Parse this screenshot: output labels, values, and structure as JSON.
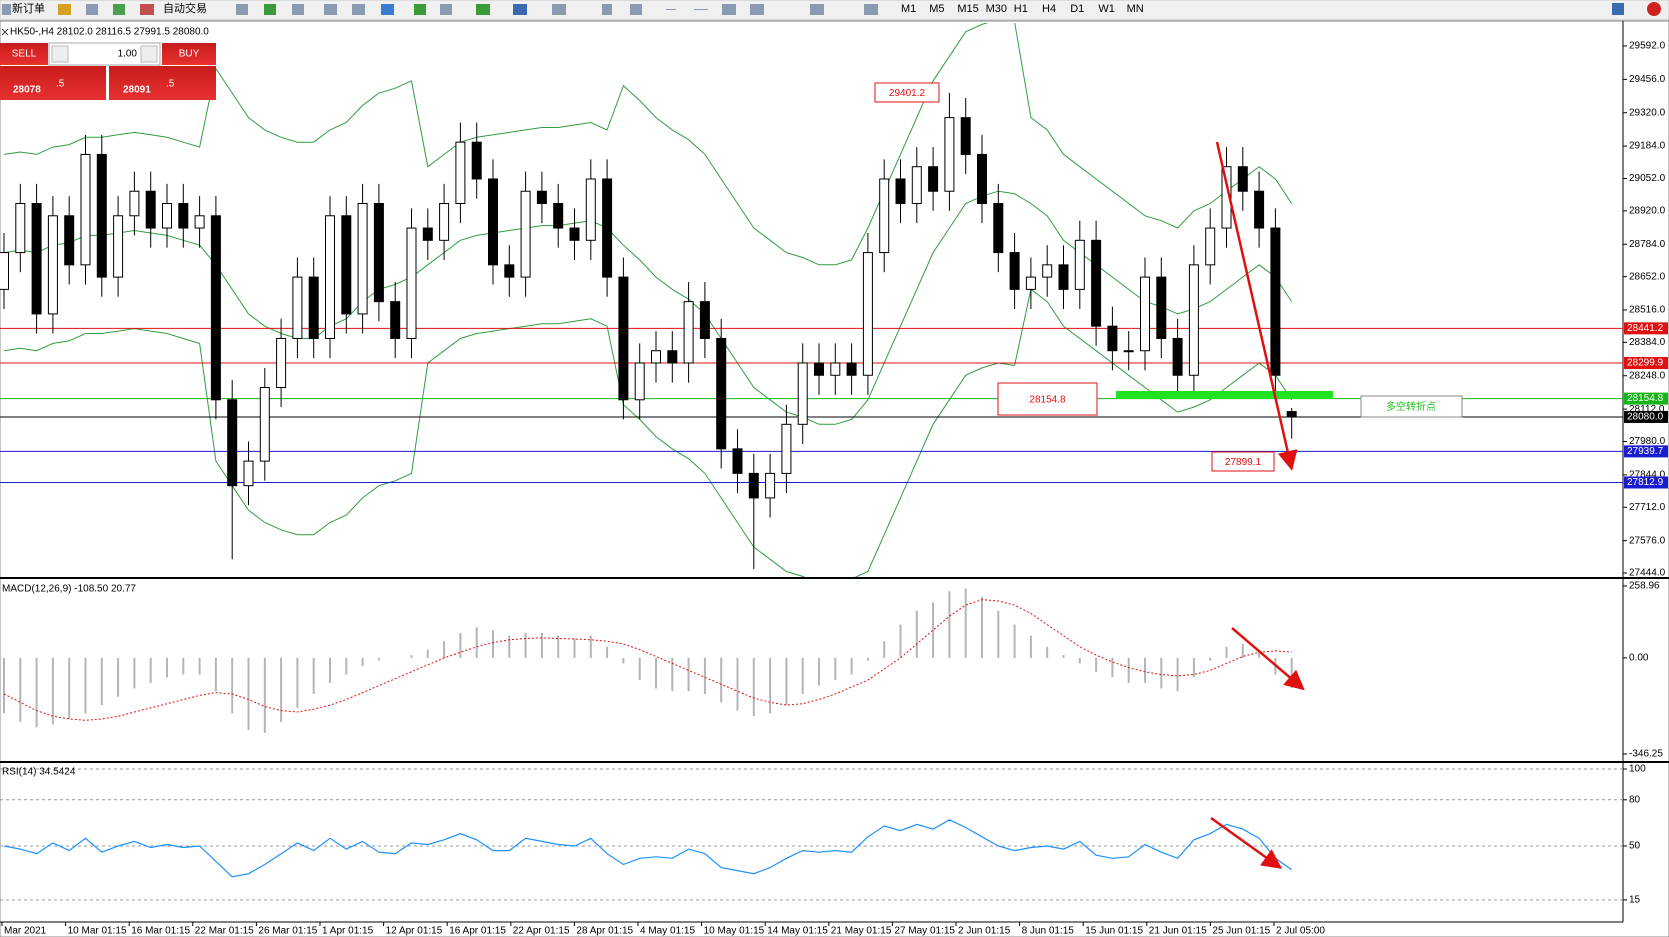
{
  "toolbar": {
    "new_order": "新订单",
    "auto_trading": "自动交易",
    "timeframes": [
      "M1",
      "M5",
      "M15",
      "M30",
      "H1",
      "H4",
      "D1",
      "W1",
      "MN"
    ]
  },
  "order_panel": {
    "sell": "SELL",
    "lots": "1.00",
    "buy": "BUY",
    "bid_main": "28078",
    "bid_frac": ".5",
    "ask_main": "28091",
    "ask_frac": ".5"
  },
  "chart_data": [
    {
      "type": "candlestick",
      "title": "HK50-,H4 28102.0 28116.5 27991.5 28080.0",
      "open": [
        28600,
        28750,
        28950,
        28500,
        28900,
        28700,
        29150,
        28650,
        28900,
        29000,
        28850,
        28950,
        28850,
        28900,
        28150,
        27800,
        27900,
        28200,
        28400,
        28650,
        28400,
        28900,
        28500,
        28950,
        28550,
        28400,
        28850,
        28800,
        28950,
        29200,
        29050,
        28700,
        28650,
        29000,
        28950,
        28850,
        28800,
        29050,
        28650,
        28150,
        28300,
        28350,
        28300,
        28550,
        28400,
        27950,
        27850,
        27750,
        27850,
        28050,
        28300,
        28250,
        28300,
        28250,
        28750,
        29050,
        28950,
        29100,
        29000,
        29300,
        29150,
        28950,
        28750,
        28600,
        28650,
        28700,
        28600,
        28800,
        28450,
        28350,
        28350,
        28650,
        28400,
        28250,
        28700,
        28850,
        29100,
        29000,
        28850,
        28102
      ],
      "high": [
        28830,
        29030,
        29030,
        28980,
        28980,
        29230,
        29230,
        28980,
        29080,
        29080,
        29030,
        29030,
        28980,
        28980,
        28230,
        27980,
        28280,
        28480,
        28730,
        28730,
        28980,
        28980,
        29030,
        29030,
        28630,
        28930,
        28930,
        29030,
        29280,
        29280,
        29130,
        28780,
        29080,
        29080,
        29030,
        28930,
        29130,
        29130,
        28730,
        28380,
        28430,
        28430,
        28630,
        28630,
        28480,
        28030,
        27930,
        27930,
        28130,
        28380,
        28380,
        28380,
        28380,
        28830,
        29130,
        29130,
        29180,
        29180,
        29401.2,
        29380,
        29230,
        29030,
        28830,
        28730,
        28780,
        28780,
        28880,
        28880,
        28530,
        28430,
        28730,
        28730,
        28480,
        28780,
        28930,
        29180,
        29180,
        29080,
        28930,
        28116.5
      ],
      "low": [
        28520,
        28670,
        28420,
        28420,
        28620,
        28620,
        28570,
        28570,
        28820,
        28770,
        28770,
        28770,
        28770,
        28070,
        27500,
        27720,
        27820,
        28120,
        28320,
        28320,
        28320,
        28420,
        28420,
        28470,
        28320,
        28320,
        28720,
        28720,
        28870,
        28970,
        28620,
        28570,
        28570,
        28870,
        28770,
        28720,
        28720,
        28570,
        28070,
        28070,
        28220,
        28220,
        28220,
        28320,
        27870,
        27770,
        27460,
        27670,
        27770,
        27970,
        28170,
        28170,
        28170,
        28170,
        28670,
        28870,
        28870,
        28920,
        28920,
        29070,
        28870,
        28670,
        28520,
        28520,
        28570,
        28520,
        28520,
        28370,
        28270,
        28270,
        28270,
        28320,
        28170,
        28170,
        28620,
        28770,
        28920,
        28770,
        28170,
        27991.5
      ],
      "close": [
        28750,
        28950,
        28500,
        28900,
        28700,
        29150,
        28650,
        28900,
        29000,
        28850,
        28950,
        28850,
        28900,
        28150,
        27800,
        27900,
        28200,
        28400,
        28650,
        28400,
        28900,
        28500,
        28950,
        28550,
        28400,
        28850,
        28800,
        28950,
        29200,
        29050,
        28700,
        28650,
        29000,
        28950,
        28850,
        28800,
        29050,
        28650,
        28150,
        28300,
        28350,
        28300,
        28550,
        28400,
        27950,
        27850,
        27750,
        27850,
        28050,
        28300,
        28250,
        28300,
        28250,
        28750,
        29050,
        28950,
        29100,
        29000,
        29300,
        29150,
        28950,
        28750,
        28600,
        28650,
        28700,
        28600,
        28800,
        28450,
        28350,
        28350,
        28650,
        28400,
        28250,
        28700,
        28850,
        29100,
        29000,
        28850,
        28250,
        28080
      ],
      "bands": {
        "color": "#2e9e3e",
        "upper": [
          29150,
          29160,
          29150,
          29180,
          29190,
          29220,
          29220,
          29230,
          29240,
          29230,
          29220,
          29200,
          29180,
          29500,
          29400,
          29300,
          29250,
          29220,
          29200,
          29200,
          29250,
          29280,
          29350,
          29400,
          29420,
          29450,
          29100,
          29150,
          29200,
          29220,
          29230,
          29240,
          29250,
          29260,
          29260,
          29270,
          29280,
          29250,
          29430,
          29370,
          29300,
          29250,
          29210,
          29150,
          29050,
          28950,
          28850,
          28800,
          28750,
          28730,
          28700,
          28700,
          28720,
          28850,
          29000,
          29150,
          29300,
          29450,
          29550,
          29650,
          29680,
          29700,
          29690,
          29300,
          29250,
          29150,
          29100,
          29050,
          29000,
          28950,
          28900,
          28880,
          28850,
          28920,
          28950,
          29000,
          29050,
          29100,
          29050,
          28950
        ],
        "middle": [
          28750,
          28760,
          28750,
          28780,
          28790,
          28820,
          28820,
          28830,
          28840,
          28830,
          28820,
          28800,
          28780,
          28700,
          28600,
          28500,
          28450,
          28420,
          28400,
          28400,
          28450,
          28480,
          28550,
          28600,
          28620,
          28650,
          28700,
          28750,
          28800,
          28820,
          28830,
          28840,
          28850,
          28860,
          28860,
          28870,
          28880,
          28850,
          28780,
          28720,
          28650,
          28600,
          28560,
          28500,
          28400,
          28300,
          28200,
          28150,
          28100,
          28080,
          28050,
          28050,
          28070,
          28150,
          28300,
          28450,
          28600,
          28750,
          28850,
          28950,
          28980,
          29000,
          28990,
          28950,
          28900,
          28800,
          28750,
          28700,
          28650,
          28600,
          28550,
          28530,
          28500,
          28520,
          28550,
          28600,
          28650,
          28700,
          28650,
          28550
        ],
        "lower": [
          28350,
          28360,
          28350,
          28380,
          28390,
          28420,
          28420,
          28430,
          28440,
          28430,
          28420,
          28400,
          28380,
          27900,
          27800,
          27700,
          27650,
          27620,
          27600,
          27600,
          27650,
          27680,
          27750,
          27800,
          27820,
          27850,
          28300,
          28350,
          28400,
          28420,
          28430,
          28440,
          28450,
          28460,
          28460,
          28470,
          28480,
          28450,
          28130,
          28070,
          28000,
          27950,
          27910,
          27850,
          27750,
          27650,
          27550,
          27500,
          27450,
          27430,
          27400,
          27400,
          27420,
          27450,
          27600,
          27750,
          27900,
          28050,
          28150,
          28250,
          28280,
          28300,
          28290,
          28600,
          28550,
          28450,
          28400,
          28350,
          28300,
          28250,
          28200,
          28150,
          28100,
          28120,
          28150,
          28200,
          28250,
          28300,
          28250,
          28150
        ]
      },
      "levels": [
        {
          "value": 28441.2,
          "color": "#e01010"
        },
        {
          "value": 28299.9,
          "color": "#e01010"
        },
        {
          "value": 28154.8,
          "color": "#16b416"
        },
        {
          "value": 28080,
          "label": "28080.0",
          "color": "#000000"
        },
        {
          "value": 27939.7,
          "color": "#1a1ad0"
        },
        {
          "value": 27812.9,
          "color": "#1a1ad0"
        }
      ],
      "ylim": [
        27444,
        29592
      ],
      "yticks": [
        {
          "value": 29592,
          "label": "29592.0"
        },
        {
          "value": 29456,
          "label": "29456.0"
        },
        {
          "value": 29320,
          "label": "29320.0"
        },
        {
          "value": 29184,
          "label": "29184.0"
        },
        {
          "value": 29052,
          "label": "29052.0"
        },
        {
          "value": 28920,
          "label": "28920.0"
        },
        {
          "value": 28784,
          "label": "28784.0"
        },
        {
          "value": 28652,
          "label": "28652.0"
        },
        {
          "value": 28516,
          "label": "28516.0"
        },
        {
          "value": 28384,
          "label": "28384.0"
        },
        {
          "value": 28248,
          "label": "28248.0"
        },
        {
          "value": 28112,
          "label": "28112.0"
        },
        {
          "value": 27980,
          "label": "27980.0"
        },
        {
          "value": 27844,
          "label": "27844.0"
        },
        {
          "value": 27712,
          "label": "27712.0"
        },
        {
          "value": 27576,
          "label": "27576.0"
        },
        {
          "value": 27444,
          "label": "27444.0"
        }
      ],
      "annotations": [
        "29401.2",
        "28154.8",
        "27899.1",
        "多空转折点"
      ],
      "time_labels": [
        "Mar 2021",
        "10 Mar 01:15",
        "16 Mar 01:15",
        "22 Mar 01:15",
        "26 Mar 01:15",
        "1 Apr 01:15",
        "12 Apr 01:15",
        "16 Apr 01:15",
        "22 Apr 01:15",
        "28 Apr 01:15",
        "4 May 01:15",
        "10 May 01:15",
        "14 May 01:15",
        "21 May 01:15",
        "27 May 01:15",
        "2 Jun 01:15",
        "8 Jun 01:15",
        "15 Jun 01:15",
        "21 Jun 01:15",
        "25 Jun 01:15",
        "2 Jul 05:00"
      ]
    },
    {
      "type": "macd",
      "title": "MACD(12,26,9) -108.50 20.77",
      "histogram": [
        -200,
        -230,
        -250,
        -240,
        -220,
        -200,
        -170,
        -140,
        -110,
        -90,
        -70,
        -60,
        -60,
        -120,
        -200,
        -260,
        -270,
        -230,
        -180,
        -130,
        -90,
        -60,
        -30,
        -10,
        0,
        10,
        30,
        60,
        90,
        110,
        100,
        80,
        90,
        90,
        80,
        70,
        80,
        40,
        -20,
        -80,
        -110,
        -120,
        -120,
        -130,
        -160,
        -190,
        -210,
        -200,
        -170,
        -130,
        -100,
        -80,
        -60,
        -10,
        60,
        120,
        170,
        200,
        240,
        250,
        220,
        170,
        120,
        80,
        40,
        10,
        -20,
        -50,
        -70,
        -90,
        -90,
        -110,
        -120,
        -70,
        -10,
        40,
        50,
        20,
        -60,
        -108.5
      ],
      "signal": [
        -130,
        -160,
        -190,
        -210,
        -220,
        -225,
        -220,
        -210,
        -195,
        -180,
        -165,
        -150,
        -135,
        -125,
        -130,
        -150,
        -175,
        -190,
        -195,
        -185,
        -170,
        -150,
        -125,
        -100,
        -75,
        -50,
        -25,
        0,
        20,
        40,
        55,
        65,
        70,
        72,
        70,
        68,
        65,
        60,
        50,
        30,
        5,
        -20,
        -45,
        -70,
        -95,
        -120,
        -145,
        -160,
        -170,
        -165,
        -150,
        -130,
        -105,
        -80,
        -40,
        0,
        50,
        100,
        150,
        190,
        210,
        205,
        190,
        160,
        120,
        80,
        40,
        10,
        -15,
        -35,
        -50,
        -60,
        -65,
        -60,
        -45,
        -20,
        5,
        20,
        25,
        20.77
      ],
      "hist_color": "#b4b4b4",
      "signal_color": "#e01010",
      "ylim": [
        -346.25,
        258.96
      ],
      "yticks": [
        258.96,
        {
          "value": 0,
          "label": "0.00"
        },
        -346.25
      ]
    },
    {
      "type": "line",
      "title": "RSI(14) 34.5424",
      "values": [
        50,
        48,
        45,
        52,
        47,
        55,
        46,
        50,
        53,
        49,
        51,
        49,
        50,
        40,
        30,
        32,
        38,
        45,
        52,
        47,
        55,
        48,
        53,
        46,
        45,
        52,
        51,
        54,
        58,
        54,
        47,
        47,
        55,
        53,
        51,
        50,
        55,
        45,
        38,
        42,
        43,
        42,
        48,
        45,
        36,
        34,
        32,
        36,
        42,
        47,
        46,
        47,
        46,
        56,
        63,
        60,
        64,
        61,
        67,
        62,
        56,
        50,
        47,
        49,
        50,
        48,
        53,
        44,
        42,
        43,
        51,
        46,
        42,
        54,
        58,
        64,
        61,
        55,
        42,
        34.5424
      ],
      "color": "#1e90ff",
      "ylim": [
        0,
        100
      ],
      "yticks": [
        100,
        80,
        50,
        15
      ],
      "grid": true
    }
  ]
}
